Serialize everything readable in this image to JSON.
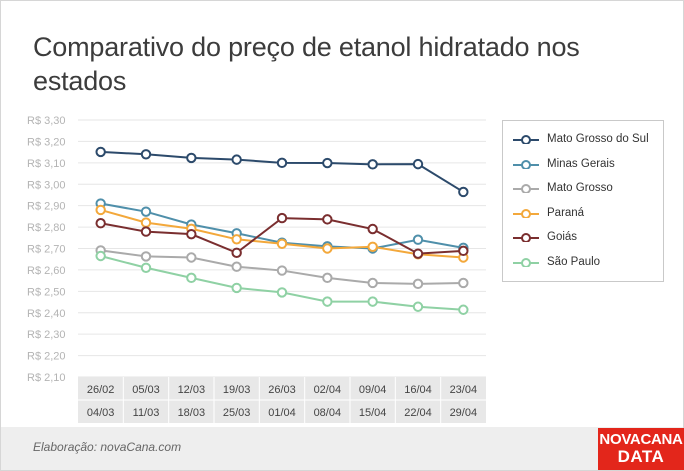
{
  "title": "Comparativo do preço de etanol hidratado nos estados",
  "credit": "Elaboração: novaCana.com",
  "logo": {
    "line1": "NOVACANA",
    "line2": "DATA"
  },
  "chart_data": {
    "type": "line",
    "title": "Comparativo do preço de etanol hidratado nos estados",
    "xlabel": "",
    "ylabel": "",
    "ylim": [
      2.1,
      3.3
    ],
    "yticks": [
      "R$ 3,30",
      "R$ 3,20",
      "R$ 3,10",
      "R$ 3,00",
      "R$ 2,90",
      "R$ 2,80",
      "R$ 2,70",
      "R$ 2,60",
      "R$ 2,50",
      "R$ 2,40",
      "R$ 2,30",
      "R$ 2,20",
      "R$ 2,10"
    ],
    "ytick_values": [
      3.3,
      3.2,
      3.1,
      3.0,
      2.9,
      2.8,
      2.7,
      2.6,
      2.5,
      2.4,
      2.3,
      2.2,
      2.1
    ],
    "categories": [
      {
        "start": "26/02",
        "end": "04/03"
      },
      {
        "start": "05/03",
        "end": "11/03"
      },
      {
        "start": "12/03",
        "end": "18/03"
      },
      {
        "start": "19/03",
        "end": "25/03"
      },
      {
        "start": "26/03",
        "end": "01/04"
      },
      {
        "start": "02/04",
        "end": "08/04"
      },
      {
        "start": "09/04",
        "end": "15/04"
      },
      {
        "start": "16/04",
        "end": "22/04"
      },
      {
        "start": "23/04",
        "end": "29/04"
      }
    ],
    "grid": true,
    "legend_position": "right",
    "series": [
      {
        "name": "Mato Grosso do Sul",
        "color": "#2c4a6b",
        "values": [
          3.151,
          3.14,
          3.123,
          3.115,
          3.1,
          3.099,
          3.093,
          3.094,
          2.964
        ]
      },
      {
        "name": "Minas Gerais",
        "color": "#4f8faa",
        "values": [
          2.91,
          2.872,
          2.812,
          2.771,
          2.727,
          2.71,
          2.7,
          2.741,
          2.703
        ]
      },
      {
        "name": "Mato Grosso",
        "color": "#aaaaaa",
        "values": [
          2.691,
          2.663,
          2.658,
          2.615,
          2.597,
          2.563,
          2.539,
          2.535,
          2.539
        ]
      },
      {
        "name": "Paraná",
        "color": "#f3a83b",
        "values": [
          2.88,
          2.821,
          2.792,
          2.743,
          2.722,
          2.7,
          2.708,
          2.673,
          2.658
        ]
      },
      {
        "name": "Goiás",
        "color": "#7a2e2f",
        "values": [
          2.818,
          2.779,
          2.767,
          2.68,
          2.842,
          2.836,
          2.791,
          2.676,
          2.689
        ]
      },
      {
        "name": "São Paulo",
        "color": "#8fd1a4",
        "values": [
          2.665,
          2.61,
          2.563,
          2.516,
          2.495,
          2.452,
          2.452,
          2.428,
          2.414
        ]
      }
    ]
  }
}
